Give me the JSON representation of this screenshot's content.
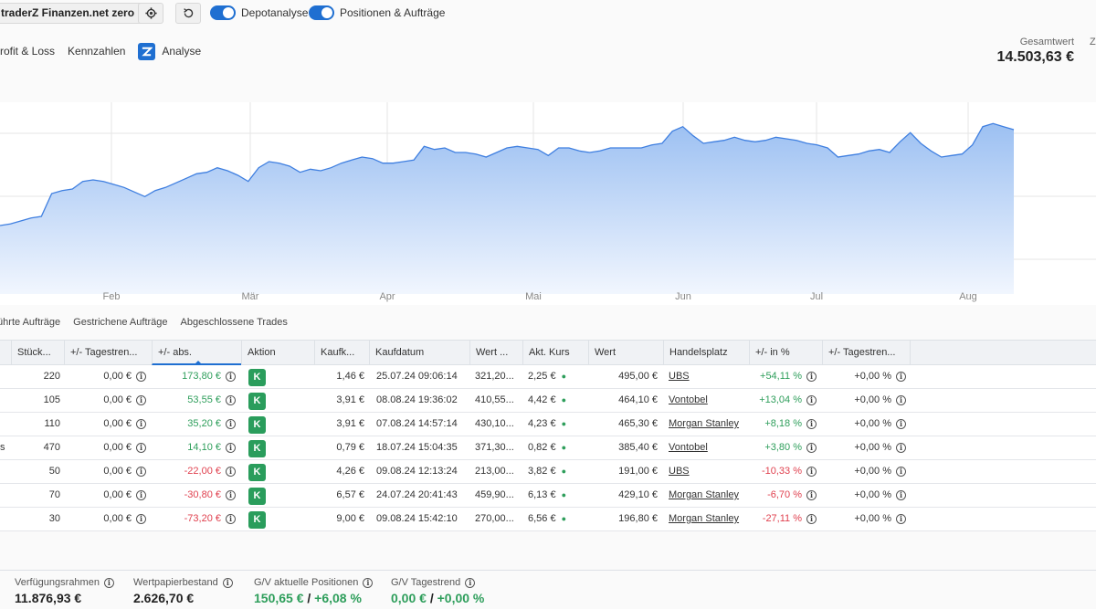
{
  "toolbar": {
    "depot_name": "traderZ Finanzen.net zero",
    "toggle_depotanalyse": "Depotanalyse",
    "toggle_positionen": "Positionen & Aufträge"
  },
  "tabs": {
    "profit_loss": "rofit & Loss",
    "kennzahlen": "Kennzahlen",
    "analyse": "Analyse"
  },
  "summary": {
    "gesamtwert_label": "Gesamtwert",
    "gesamtwert_value": "14.503,63 €",
    "edge_label": "Z"
  },
  "chart_data": {
    "type": "area",
    "xlabel": "",
    "ylabel": "",
    "x_ticks": [
      "Feb",
      "Mär",
      "Apr",
      "Mai",
      "Jun",
      "Jul",
      "Aug"
    ],
    "series": [
      {
        "values": [
          45,
          46,
          48,
          50,
          51,
          66,
          68,
          69,
          74,
          75,
          74,
          72,
          70,
          67,
          64,
          68,
          70,
          73,
          76,
          79,
          80,
          83,
          81,
          78,
          74,
          83,
          87,
          86,
          84,
          80,
          82,
          81,
          83,
          86,
          88,
          90,
          89,
          86,
          86,
          87,
          88,
          97,
          95,
          96,
          93,
          93,
          92,
          90,
          93,
          96,
          97,
          96,
          95,
          91,
          96,
          96,
          94,
          93,
          94,
          96,
          96,
          96,
          96,
          98,
          99,
          107,
          110,
          104,
          99,
          100,
          101,
          103,
          101,
          100,
          101,
          103,
          102,
          101,
          99,
          98,
          96,
          90,
          91,
          92,
          94,
          95,
          93,
          100,
          106,
          99,
          94,
          90,
          91,
          92,
          98,
          110,
          112,
          110,
          108
        ]
      }
    ],
    "colors": {
      "line": "#3f7fe0",
      "fill_top": "#9cc0f2",
      "fill_bottom": "#f1f6fe",
      "grid": "#e5e5e5"
    }
  },
  "order_tabs": {
    "ausgefuehrte": "führte Aufträge",
    "gestrichene": "Gestrichene Aufträge",
    "abgeschlossene": "Abgeschlossene Trades"
  },
  "table": {
    "headers": {
      "stueck": "Stück...",
      "tagestrend": "+/- Tagestren...",
      "abs": "+/- abs.",
      "aktion": "Aktion",
      "kaufkurs": "Kaufk...",
      "kaufdatum": "Kaufdatum",
      "wert_kauf": "Wert ...",
      "akt_kurs": "Akt. Kurs",
      "wert": "Wert",
      "handelsplatz": "Handelsplatz",
      "prozent": "+/- in %",
      "tagestrend2": "+/- Tagestren..."
    },
    "aktion_label": "K",
    "rows": [
      {
        "name": "",
        "stueck": "220",
        "tagestrend": "0,00 €",
        "abs": "173,80 €",
        "kaufkurs": "1,46 €",
        "kaufdatum": "25.07.24 09:06:14",
        "wert_kauf": "321,20...",
        "akt_kurs": "2,25 €",
        "wert": "495,00 €",
        "handelsplatz": "UBS",
        "prozent": "+54,11 %",
        "tagestrend2": "+0,00 %"
      },
      {
        "name": "",
        "stueck": "105",
        "tagestrend": "0,00 €",
        "abs": "53,55 €",
        "kaufkurs": "3,91 €",
        "kaufdatum": "08.08.24 19:36:02",
        "wert_kauf": "410,55...",
        "akt_kurs": "4,42 €",
        "wert": "464,10 €",
        "handelsplatz": "Vontobel",
        "prozent": "+13,04 %",
        "tagestrend2": "+0,00 %"
      },
      {
        "name": "",
        "stueck": "110",
        "tagestrend": "0,00 €",
        "abs": "35,20 €",
        "kaufkurs": "3,91 €",
        "kaufdatum": "07.08.24 14:57:14",
        "wert_kauf": "430,10...",
        "akt_kurs": "4,23 €",
        "wert": "465,30 €",
        "handelsplatz": "Morgan Stanley",
        "prozent": "+8,18 %",
        "tagestrend2": "+0,00 %"
      },
      {
        "name": "s",
        "stueck": "470",
        "tagestrend": "0,00 €",
        "abs": "14,10 €",
        "kaufkurs": "0,79 €",
        "kaufdatum": "18.07.24 15:04:35",
        "wert_kauf": "371,30...",
        "akt_kurs": "0,82 €",
        "wert": "385,40 €",
        "handelsplatz": "Vontobel",
        "prozent": "+3,80 %",
        "tagestrend2": "+0,00 %"
      },
      {
        "name": "",
        "stueck": "50",
        "tagestrend": "0,00 €",
        "abs": "-22,00 €",
        "kaufkurs": "4,26 €",
        "kaufdatum": "09.08.24 12:13:24",
        "wert_kauf": "213,00...",
        "akt_kurs": "3,82 €",
        "wert": "191,00 €",
        "handelsplatz": "UBS",
        "prozent": "-10,33 %",
        "tagestrend2": "+0,00 %"
      },
      {
        "name": "",
        "stueck": "70",
        "tagestrend": "0,00 €",
        "abs": "-30,80 €",
        "kaufkurs": "6,57 €",
        "kaufdatum": "24.07.24 20:41:43",
        "wert_kauf": "459,90...",
        "akt_kurs": "6,13 €",
        "wert": "429,10 €",
        "handelsplatz": "Morgan Stanley",
        "prozent": "-6,70 %",
        "tagestrend2": "+0,00 %"
      },
      {
        "name": "",
        "stueck": "30",
        "tagestrend": "0,00 €",
        "abs": "-73,20 €",
        "kaufkurs": "9,00 €",
        "kaufdatum": "09.08.24 15:42:10",
        "wert_kauf": "270,00...",
        "akt_kurs": "6,56 €",
        "wert": "196,80 €",
        "handelsplatz": "Morgan Stanley",
        "prozent": "-27,11 %",
        "tagestrend2": "+0,00 %"
      }
    ]
  },
  "footer": {
    "verfuegung_label": "Verfügungsrahmen",
    "verfuegung_value": "11.876,93 €",
    "wertpapier_label": "Wertpapierbestand",
    "wertpapier_value": "2.626,70 €",
    "gv_aktuell_label": "G/V aktuelle Positionen",
    "gv_aktuell_abs": "150,65 €",
    "gv_aktuell_pct": "+6,08 %",
    "gv_trend_label": "G/V Tagestrend",
    "gv_trend_abs": "0,00 €",
    "gv_trend_pct": "+0,00 %",
    "separator": " / "
  }
}
